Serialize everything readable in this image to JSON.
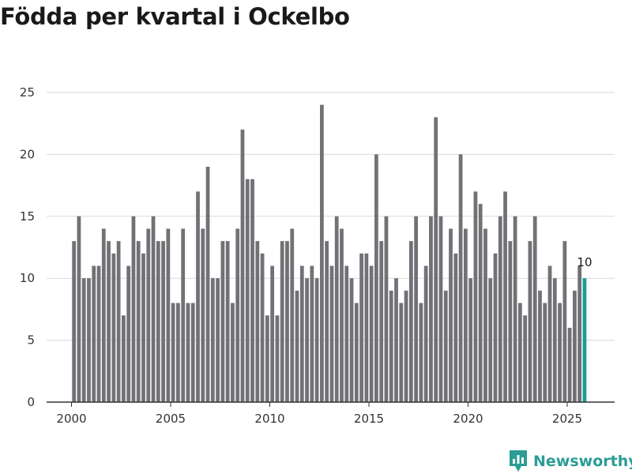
{
  "chart_data": {
    "type": "bar",
    "title": "Födda per kvartal i Ockelbo",
    "xlabel": "",
    "ylabel": "",
    "ylim": [
      0,
      25
    ],
    "yticks": [
      0,
      5,
      10,
      15,
      20,
      25
    ],
    "xticks": [
      2000,
      2005,
      2010,
      2015,
      2020,
      2025
    ],
    "x_start": 2000,
    "x_end": 2026,
    "highlight_label": "10",
    "colors": {
      "bar": "#727176",
      "highlight": "#1a9e94",
      "grid": "#d9d9d9",
      "axis": "#333333"
    },
    "series": [
      {
        "name": "Födda",
        "x_first": 2000.0,
        "x_step": 0.25,
        "values": [
          13,
          15,
          10,
          10,
          11,
          11,
          14,
          13,
          12,
          13,
          7,
          11,
          15,
          13,
          12,
          14,
          15,
          13,
          13,
          14,
          8,
          8,
          14,
          8,
          8,
          17,
          14,
          19,
          10,
          10,
          13,
          13,
          8,
          14,
          22,
          18,
          18,
          13,
          12,
          7,
          11,
          7,
          13,
          13,
          14,
          9,
          11,
          10,
          11,
          10,
          24,
          13,
          11,
          15,
          14,
          11,
          10,
          8,
          12,
          12,
          11,
          20,
          13,
          15,
          9,
          10,
          8,
          9,
          13,
          15,
          8,
          11,
          15,
          23,
          15,
          9,
          14,
          12,
          20,
          14,
          10,
          17,
          16,
          14,
          10,
          12,
          15,
          17,
          13,
          15,
          8,
          7,
          13,
          15,
          9,
          8,
          11,
          10,
          8,
          13,
          6,
          9,
          11,
          10
        ]
      }
    ]
  },
  "brand": {
    "name": "Newsworthy",
    "icon": "newsworthy-logo-icon"
  }
}
